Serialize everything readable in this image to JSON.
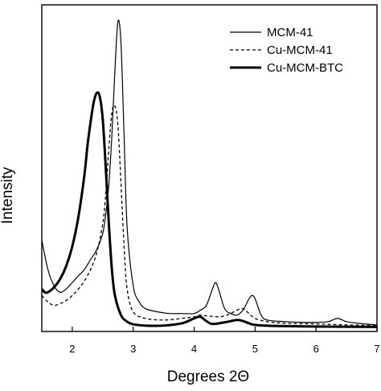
{
  "chart_data": {
    "type": "line",
    "xlabel": "Degrees 2Θ",
    "ylabel": "Intensity",
    "xlim": [
      1.5,
      7
    ],
    "ylim": [
      0,
      100
    ],
    "xticks": [
      "2",
      "3",
      "4",
      "5",
      "6",
      "7"
    ],
    "grid": false,
    "legend_position": "top-right",
    "series": [
      {
        "name": "MCM-41",
        "style": "solid-thin",
        "color": "#000000",
        "x": [
          1.5,
          1.6,
          1.7,
          1.8,
          1.9,
          2.0,
          2.1,
          2.2,
          2.3,
          2.4,
          2.5,
          2.55,
          2.6,
          2.65,
          2.7,
          2.75,
          2.8,
          2.85,
          2.9,
          3.0,
          3.1,
          3.2,
          3.4,
          3.6,
          3.8,
          4.0,
          4.1,
          4.2,
          4.3,
          4.35,
          4.4,
          4.5,
          4.6,
          4.7,
          4.8,
          4.9,
          4.95,
          5.0,
          5.1,
          5.2,
          5.5,
          5.8,
          6.0,
          6.2,
          6.35,
          6.5,
          6.7,
          7.0
        ],
        "y": [
          28,
          19,
          14,
          12,
          13,
          15,
          17,
          19,
          22,
          25,
          30,
          36,
          45,
          60,
          80,
          95,
          88,
          60,
          32,
          14,
          9,
          7,
          6,
          5.5,
          5.5,
          5.5,
          6.5,
          8,
          13,
          15,
          13,
          7,
          5.5,
          5,
          6.5,
          10,
          11,
          10,
          5,
          3.5,
          3,
          2.8,
          2.8,
          3,
          4,
          3,
          2.5,
          2
        ]
      },
      {
        "name": "Cu-MCM-41",
        "style": "dashed",
        "color": "#000000",
        "x": [
          1.5,
          1.6,
          1.7,
          1.8,
          1.9,
          2.0,
          2.1,
          2.2,
          2.3,
          2.4,
          2.5,
          2.55,
          2.6,
          2.65,
          2.7,
          2.75,
          2.8,
          2.85,
          2.9,
          3.0,
          3.2,
          3.5,
          3.8,
          4.0,
          4.1,
          4.2,
          4.4,
          4.5,
          4.6,
          4.7,
          4.8,
          4.9,
          5.0,
          5.2,
          5.5,
          6.0,
          6.5,
          7.0
        ],
        "y": [
          11,
          9,
          8,
          8.5,
          9.5,
          11,
          13,
          15.5,
          19,
          24,
          33,
          42,
          56,
          67,
          69,
          63,
          45,
          26,
          13,
          6,
          4,
          3.5,
          4,
          4.5,
          5,
          4.8,
          4.5,
          4.8,
          5.5,
          6.5,
          7,
          5.5,
          4,
          3,
          2.5,
          2.3,
          2,
          1.8
        ]
      },
      {
        "name": "Cu-MCM-BTC",
        "style": "solid-thick",
        "color": "#000000",
        "x": [
          1.5,
          1.55,
          1.6,
          1.7,
          1.8,
          1.9,
          2.0,
          2.1,
          2.2,
          2.25,
          2.3,
          2.35,
          2.4,
          2.45,
          2.5,
          2.55,
          2.6,
          2.65,
          2.7,
          2.8,
          2.9,
          3.0,
          3.2,
          3.5,
          3.8,
          4.0,
          4.1,
          4.2,
          4.3,
          4.5,
          4.7,
          4.8,
          4.9,
          5.0,
          5.3,
          6.0,
          7.0
        ],
        "y": [
          13,
          12,
          12,
          13.5,
          16,
          20,
          26,
          35,
          48,
          57,
          64,
          70,
          73,
          72,
          65,
          50,
          33,
          19,
          11,
          5,
          3,
          2.2,
          1.8,
          1.8,
          2.5,
          4,
          4.5,
          3.2,
          2.3,
          2.8,
          3.5,
          3.2,
          2.5,
          2,
          1.7,
          1.5,
          1.4
        ]
      }
    ]
  }
}
